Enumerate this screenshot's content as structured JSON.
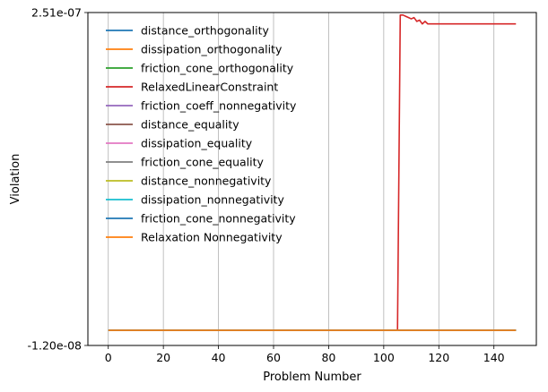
{
  "chart_data": {
    "type": "line",
    "title": "",
    "xlabel": "Problem Number",
    "ylabel": "Violation",
    "xlim": [
      -7.4,
      155.4
    ],
    "ylim": [
      -1.2e-08,
      2.51e-07
    ],
    "x_ticks": [
      0,
      20,
      40,
      60,
      80,
      100,
      120,
      140
    ],
    "y_ticks": [
      -1.2e-08,
      2.51e-07
    ],
    "y_tick_labels": [
      "-1.20e-08",
      "2.51e-07"
    ],
    "grid": "vertical",
    "legend_position": "top-left",
    "series": [
      {
        "name": "distance_orthogonality",
        "color": "#1f77b4",
        "constant": 0
      },
      {
        "name": "dissipation_orthogonality",
        "color": "#ff7f0e",
        "constant": 0
      },
      {
        "name": "friction_cone_orthogonality",
        "color": "#2ca02c",
        "constant": 0
      },
      {
        "name": "RelaxedLinearConstraint",
        "color": "#d62728",
        "points": [
          [
            0,
            0
          ],
          [
            104,
            0
          ],
          [
            105,
            0
          ],
          [
            106,
            2.49e-07
          ],
          [
            107,
            2.49e-07
          ],
          [
            108,
            2.48e-07
          ],
          [
            109,
            2.47e-07
          ],
          [
            110,
            2.46e-07
          ],
          [
            111,
            2.47e-07
          ],
          [
            112,
            2.44e-07
          ],
          [
            113,
            2.45e-07
          ],
          [
            114,
            2.42e-07
          ],
          [
            115,
            2.44e-07
          ],
          [
            116,
            2.42e-07
          ],
          [
            148,
            2.42e-07
          ]
        ]
      },
      {
        "name": "friction_coeff_nonnegativity",
        "color": "#9467bd",
        "constant": 0
      },
      {
        "name": "distance_equality",
        "color": "#8c564b",
        "constant": 0
      },
      {
        "name": "dissipation_equality",
        "color": "#e377c2",
        "constant": 0
      },
      {
        "name": "friction_cone_equality",
        "color": "#7f7f7f",
        "constant": 0
      },
      {
        "name": "distance_nonnegativity",
        "color": "#bcbd22",
        "constant": 0
      },
      {
        "name": "dissipation_nonnegativity",
        "color": "#17becf",
        "constant": 0
      },
      {
        "name": "friction_cone_nonnegativity",
        "color": "#1f77b4",
        "constant": 0
      },
      {
        "name": "Relaxation Nonnegativity",
        "color": "#ff7f0e",
        "constant": 0
      }
    ],
    "x_range": [
      0,
      148
    ]
  }
}
